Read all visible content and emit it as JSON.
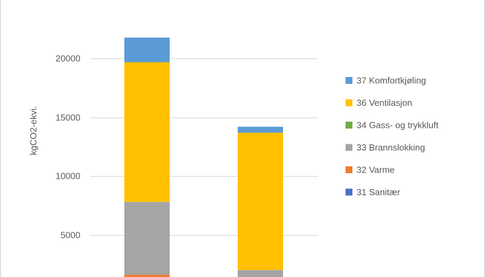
{
  "chart_data": {
    "type": "bar",
    "stacked": true,
    "title": "",
    "xlabel": "",
    "ylabel": "kgCO2-ekvi.",
    "categories": [
      "",
      ""
    ],
    "y_ticks": [
      5000,
      10000,
      15000,
      20000
    ],
    "y_tick_labels": [
      "5000",
      "10000",
      "15000",
      "20000"
    ],
    "ylim": [
      1400,
      25000
    ],
    "grid": true,
    "legend_position": "right",
    "series": [
      {
        "name": "31 Sanitær",
        "color": "#4472c4",
        "values": [
          0,
          0
        ]
      },
      {
        "name": "32 Varme",
        "color": "#ed7d31",
        "values": [
          1600,
          0
        ]
      },
      {
        "name": "33 Brannslokking",
        "color": "#a5a5a5",
        "values": [
          6200,
          2000
        ]
      },
      {
        "name": "34 Gass- og trykkluft",
        "color": "#70ad47",
        "values": [
          0,
          0
        ]
      },
      {
        "name": "36 Ventilasjon",
        "color": "#ffc000",
        "values": [
          11900,
          11700
        ]
      },
      {
        "name": "37 Komfortkjøling",
        "color": "#5b9bd5",
        "values": [
          2100,
          500
        ]
      }
    ]
  }
}
